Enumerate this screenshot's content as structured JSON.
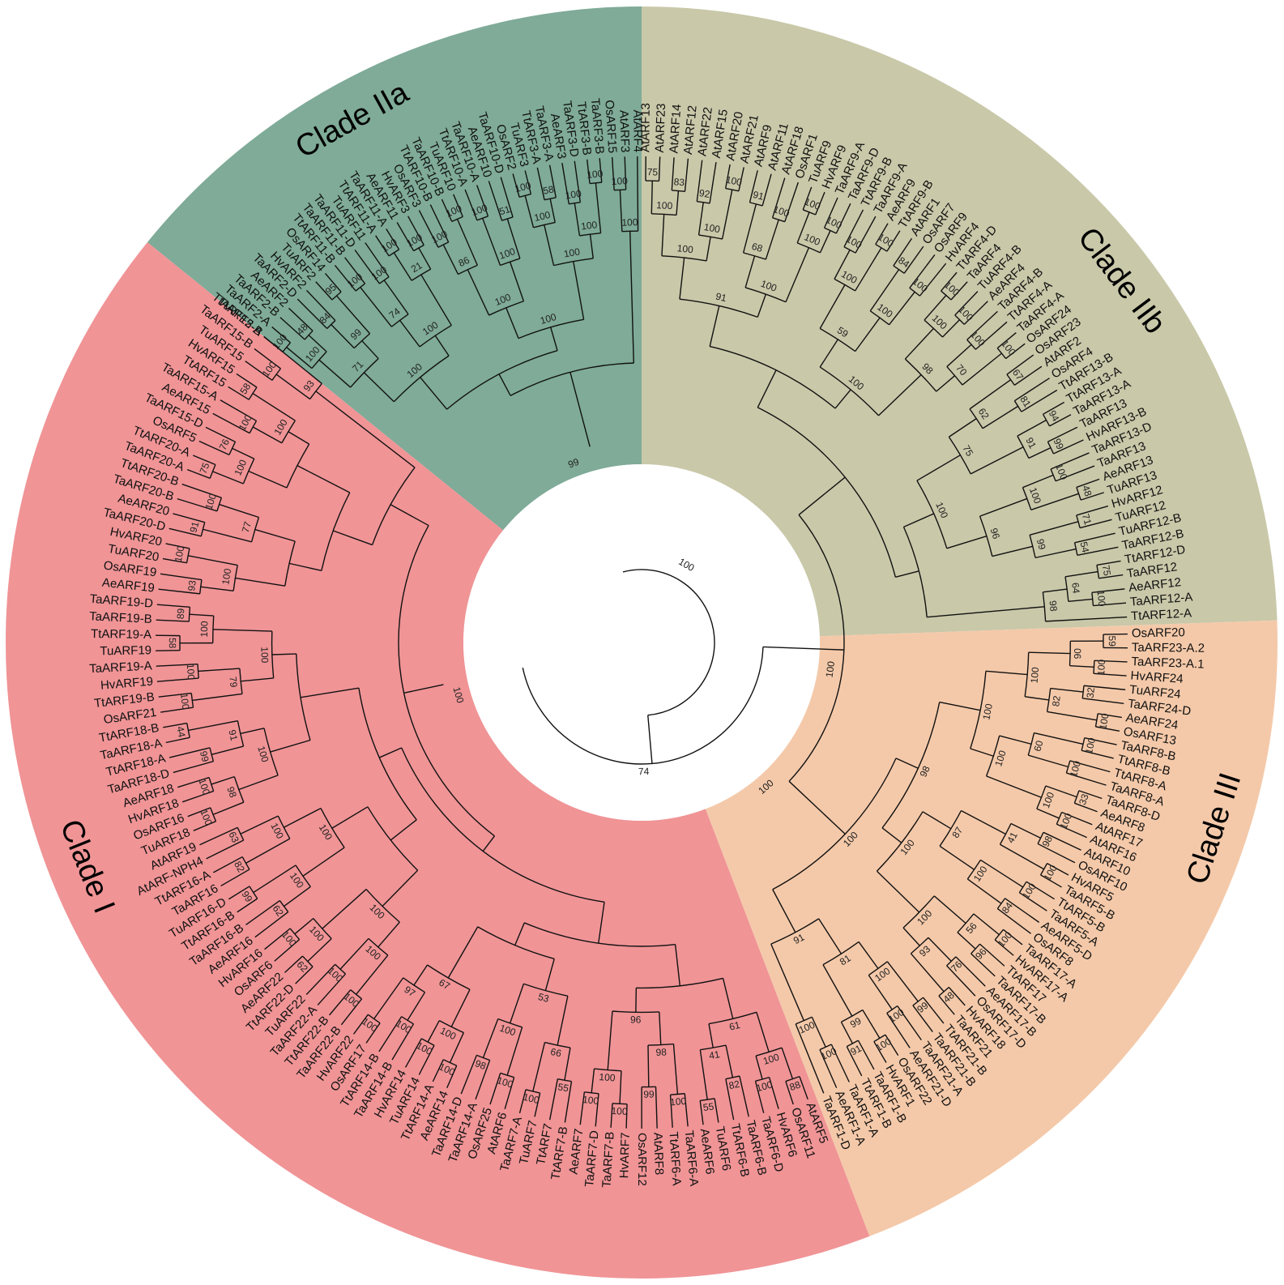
{
  "clades": [
    {
      "label": "Clade IIa",
      "color": "#7fab98"
    },
    {
      "label": "Clade IIb",
      "color": "#c9c8a9"
    },
    {
      "label": "Clade III",
      "color": "#f4c9a9"
    },
    {
      "label": "Clade I",
      "color": "#f09496"
    }
  ],
  "leaves": {
    "IIa": [
      "TtARF2-A",
      "TaARF2-A",
      "TaARF2-B",
      "AeARF2",
      "TaARF2-D",
      "HvARF2",
      "TuARF2",
      "OsARF14",
      "TtARF11-B",
      "TaARF11-B",
      "TaARF11-D",
      "TuARF11",
      "TtARF11-A",
      "TaARF11-A",
      "AeARF11",
      "HvARF3",
      "OsARF3",
      "TtARF10-B",
      "TaARF10-B",
      "TuARF10",
      "TtARF10-A",
      "TaARF10-A",
      "AeARF10",
      "TaARF10-D",
      "OsARF2",
      "TuARF3",
      "TtARF3-A",
      "TaARF3-A",
      "AeARF3",
      "TaARF3-D",
      "TtARF3-B",
      "TaARF3-B",
      "OsARF15",
      "AtARF3",
      "AtARF4"
    ],
    "IIb": [
      "AtARF13",
      "AtARF23",
      "AtARF14",
      "AtARF12",
      "AtARF22",
      "AtARF15",
      "AtARF20",
      "AtARF21",
      "AtARF9",
      "AtARF11",
      "AtARF18",
      "OsARF1",
      "TuARF9",
      "HvARF9",
      "TaARF9-A",
      "TaARF9-D",
      "TtARF9-B",
      "TaARF9-A",
      "AeARF9",
      "TtARF9-B",
      "AtARF1",
      "OsARF7",
      "OsARF9",
      "HvARF4",
      "TtARF4-D",
      "TaARF4",
      "TuARF4-B",
      "AeARF4",
      "TaARF4-B",
      "TtARF4-A",
      "TaARF4-A",
      "OsARF24",
      "OsARF23",
      "AtARF2",
      "OsARF4",
      "TtARF13-B",
      "TtARF13-A",
      "TaARF13-A",
      "TaARF13",
      "HvARF13-B",
      "TaARF13-D",
      "TaARF13",
      "AeARF13",
      "TuARF13",
      "HvARF12",
      "TuARF12",
      "TuARF12-B",
      "TaARF12-B",
      "TtARF12-D",
      "TaARF12",
      "AeARF12",
      "TaARF12-A",
      "TtARF12-A"
    ],
    "III": [
      "OsARF20",
      "TaARF23-A.2",
      "TaARF23-A.1",
      "HvARF24",
      "TuARF24",
      "TaARF24-D",
      "AeARF24",
      "OsARF13",
      "TaARF8-B",
      "TtARF8-B",
      "TtARF8-A",
      "TaARF8-A",
      "TaARF8-D",
      "AeARF8",
      "AtARF17",
      "AtARF16",
      "AtARF10",
      "OsARF10",
      "HvARF5",
      "TaARF5-B",
      "TtARF5-B",
      "TaARF5-A",
      "AeARF5-D",
      "OsARF8",
      "TaARF17-A",
      "HvARF17-A",
      "TtARF17",
      "TaARF17-B",
      "AeARF17-B",
      "OsARF17-D",
      "HvARF18",
      "TaARF21",
      "TtARF21-B",
      "TaARF21-B",
      "TaARF21-A",
      "AeARF21-D",
      "OsARF22",
      "HvARF1",
      "TaARF1-B",
      "TtARF1-B",
      "TaARF1-A",
      "AeARF1-A",
      "TaARF1-D"
    ],
    "I": [
      "AtARF5",
      "OsARF11",
      "HvARF6",
      "TaARF6-D",
      "TaARF6-B",
      "TtARF6-B",
      "TuARF6",
      "AeARF6",
      "TaARF6-A",
      "TtARF6-A",
      "AtARF8",
      "OsARF12",
      "HvARF7",
      "TaARF7-B",
      "TaARF7-D",
      "AeARF7",
      "TtARF7-B",
      "TtARF7",
      "TuARF7",
      "TaARF7-A",
      "AtARF6",
      "OsARF25",
      "TaARF14-A",
      "TaARF14-D",
      "AeARF14",
      "TtARF14-A",
      "TuARF14",
      "HvARF14",
      "TaARF14-B",
      "TtARF14-B",
      "OsARF17",
      "HvARF22",
      "TaARF22-B",
      "TtARF22-B",
      "TaARF22-A",
      "TuARF22",
      "TtARF22-D",
      "AeARF22",
      "OsARF6",
      "HvARF16",
      "AeARF16",
      "TaARF16-B",
      "TtARF16-B",
      "TuARF16-D",
      "TaARF16",
      "TtARF16-A",
      "AtARF-NPH4",
      "AtARF19",
      "TuARF18",
      "OsARF16",
      "HvARF18",
      "AeARF18",
      "TaARF18-D",
      "TtARF18-A",
      "TaARF18-A",
      "TtARF18-B",
      "OsARF21",
      "TtARF19-B",
      "HvARF19",
      "TaARF19-A",
      "TuARF19",
      "TtARF19-A",
      "TaARF19-B",
      "TaARF19-D",
      "AeARF19",
      "OsARF19",
      "TuARF20",
      "HvARF20",
      "TaARF20-D",
      "AeARF20",
      "TaARF20-B",
      "TtARF20-B",
      "TaARF20-A",
      "TtARF20-A",
      "OsARF5",
      "TaARF15-D",
      "AeARF15",
      "TaARF15-A",
      "TtARF15",
      "HvARF15",
      "TuARF15",
      "TaARF15-B",
      "TtARF15-B"
    ]
  },
  "bootstrap": {
    "center": [
      "99",
      "100",
      "100",
      "74",
      "100",
      "100"
    ],
    "IIa": [
      "100",
      "48",
      "84",
      "95",
      "100",
      "100",
      "100",
      "100",
      "100",
      "100",
      "100",
      "51",
      "100",
      "58",
      "100",
      "100",
      "100",
      "100",
      "99",
      "74",
      "21",
      "86",
      "100",
      "100",
      "100",
      "100",
      "71",
      "100",
      "100",
      "100",
      "100",
      "100"
    ],
    "IIb": [
      "75",
      "83",
      "92",
      "100",
      "91",
      "100",
      "100",
      "100",
      "100",
      "100",
      "84",
      "100",
      "100",
      "100",
      "100",
      "100",
      "67",
      "81",
      "94",
      "99",
      "100",
      "48",
      "71",
      "54",
      "75",
      "100",
      "100",
      "100",
      "68",
      "100",
      "100",
      "100",
      "100",
      "70",
      "62",
      "91",
      "100",
      "99",
      "64",
      "100",
      "100",
      "59",
      "98",
      "75",
      "96",
      "98",
      "91",
      "100",
      "100"
    ],
    "III": [
      "59",
      "100",
      "32",
      "100",
      "100",
      "100",
      "33",
      "100",
      "98",
      "100",
      "100",
      "84",
      "100",
      "96",
      "76",
      "48",
      "99",
      "100",
      "100",
      "91",
      "100",
      "90",
      "82",
      "60",
      "100",
      "41",
      "100",
      "56",
      "93",
      "100",
      "99",
      "100",
      "100",
      "100",
      "87",
      "100",
      "81",
      "100",
      "100",
      "91",
      "98",
      "100",
      "67"
    ],
    "I": [
      "88",
      "100",
      "82",
      "55",
      "100",
      "99",
      "100",
      "100",
      "55",
      "100",
      "100",
      "98",
      "100",
      "100",
      "100",
      "100",
      "100",
      "100",
      "62",
      "100",
      "62",
      "99",
      "82",
      "63",
      "100",
      "100",
      "99",
      "44",
      "100",
      "100",
      "58",
      "89",
      "93",
      "100",
      "91",
      "100",
      "75",
      "76",
      "100",
      "58",
      "100",
      "100",
      "41",
      "98",
      "100",
      "66",
      "100",
      "100",
      "97",
      "100",
      "100",
      "100",
      "100",
      "98",
      "91",
      "79",
      "100",
      "100",
      "77",
      "100",
      "100",
      "93",
      "61",
      "96",
      "53",
      "67",
      "100",
      "100",
      "100",
      "100"
    ]
  }
}
